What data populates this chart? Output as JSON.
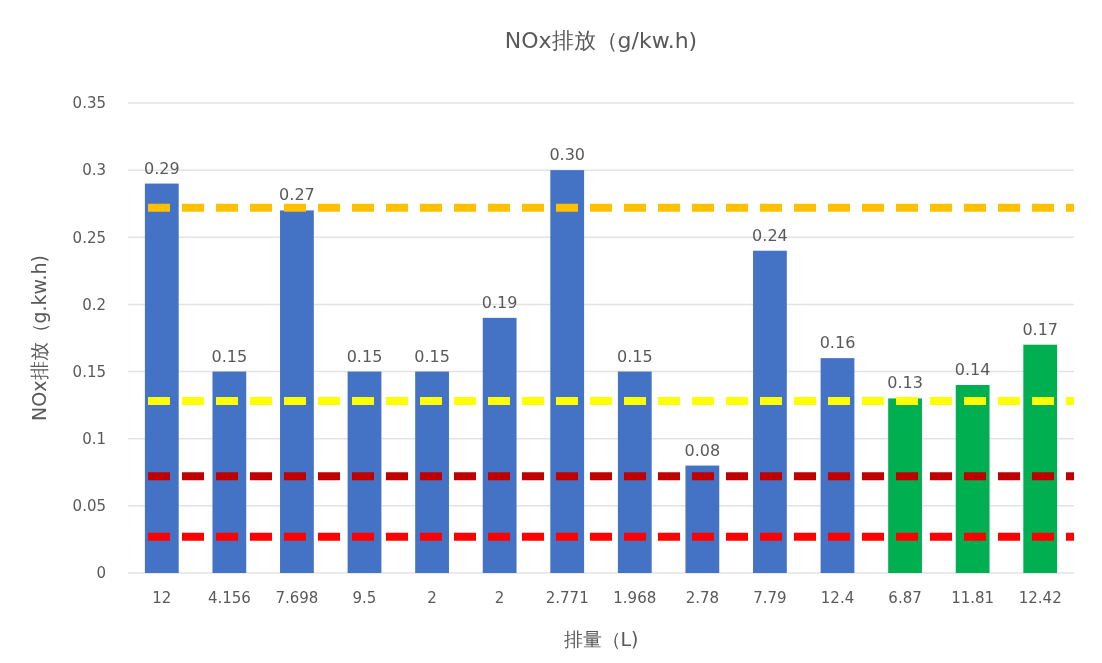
{
  "chart_data": {
    "type": "bar",
    "title": "NOx排放（g/kw.h)",
    "xlabel": "排量（L)",
    "ylabel": "NOx排放（g.kw.h)",
    "categories": [
      "12",
      "4.156",
      "7.698",
      "9.5",
      "2",
      "2",
      "2.771",
      "1.968",
      "2.78",
      "7.79",
      "12.4",
      "6.87",
      "11.81",
      "12.42"
    ],
    "values": [
      0.29,
      0.15,
      0.27,
      0.15,
      0.15,
      0.19,
      0.3,
      0.15,
      0.08,
      0.24,
      0.16,
      0.13,
      0.14,
      0.17
    ],
    "value_labels": [
      "0.29",
      "0.15",
      "0.27",
      "0.15",
      "0.15",
      "0.19",
      "0.30",
      "0.15",
      "0.08",
      "0.24",
      "0.16",
      "0.13",
      "0.14",
      "0.17"
    ],
    "colors": [
      "#4472c4",
      "#4472c4",
      "#4472c4",
      "#4472c4",
      "#4472c4",
      "#4472c4",
      "#4472c4",
      "#4472c4",
      "#4472c4",
      "#4472c4",
      "#4472c4",
      "#00b050",
      "#00b050",
      "#00b050"
    ],
    "ylim": [
      0,
      0.35
    ],
    "yticks": [
      0,
      0.05,
      0.1,
      0.15,
      0.2,
      0.25,
      0.3,
      0.35
    ],
    "grid": "y",
    "ref_lines": [
      {
        "axis": "y",
        "value": 0.272,
        "color": "#ffc000",
        "line_style": "dashed"
      },
      {
        "axis": "y",
        "value": 0.128,
        "color": "#ffff00",
        "line_style": "dashed"
      },
      {
        "axis": "y",
        "value": 0.072,
        "color": "#c00000",
        "line_style": "dashed"
      },
      {
        "axis": "y",
        "value": 0.027,
        "color": "#ff0000",
        "line_style": "dashed"
      }
    ]
  }
}
